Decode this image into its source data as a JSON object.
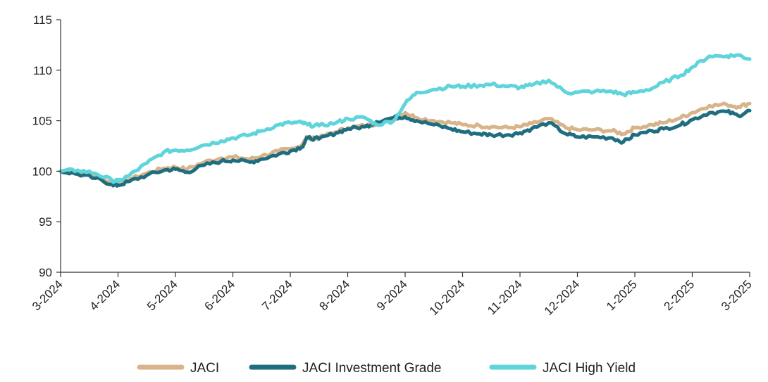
{
  "chart_data": {
    "type": "line",
    "title": "",
    "xlabel": "",
    "ylabel": "",
    "ylim": [
      90,
      115
    ],
    "yticks": [
      90,
      95,
      100,
      105,
      110,
      115
    ],
    "categories": [
      "3-2024",
      "4-2024",
      "5-2024",
      "6-2024",
      "7-2024",
      "8-2024",
      "9-2024",
      "10-2024",
      "11-2024",
      "12-2024",
      "1-2025",
      "2-2025",
      "3-2025"
    ],
    "grid": false,
    "legend_position": "bottom",
    "series": [
      {
        "name": "JACI",
        "color": "#D8B48A",
        "points": [
          [
            0,
            100.0
          ],
          [
            0.3,
            99.9
          ],
          [
            0.6,
            99.5
          ],
          [
            0.9,
            98.9
          ],
          [
            1.0,
            98.8
          ],
          [
            1.2,
            99.2
          ],
          [
            1.5,
            99.8
          ],
          [
            1.8,
            100.3
          ],
          [
            2.0,
            100.4
          ],
          [
            2.2,
            100.2
          ],
          [
            2.5,
            100.9
          ],
          [
            2.8,
            101.3
          ],
          [
            3.0,
            101.4
          ],
          [
            3.3,
            101.2
          ],
          [
            3.5,
            101.5
          ],
          [
            3.8,
            102.0
          ],
          [
            4.0,
            102.2
          ],
          [
            4.2,
            102.6
          ],
          [
            4.3,
            103.4
          ],
          [
            4.5,
            103.3
          ],
          [
            4.8,
            103.9
          ],
          [
            5.0,
            104.3
          ],
          [
            5.3,
            104.5
          ],
          [
            5.5,
            104.7
          ],
          [
            5.8,
            105.1
          ],
          [
            6.0,
            105.8
          ],
          [
            6.2,
            105.3
          ],
          [
            6.5,
            105.0
          ],
          [
            6.8,
            104.8
          ],
          [
            7.0,
            104.6
          ],
          [
            7.3,
            104.5
          ],
          [
            7.5,
            104.4
          ],
          [
            7.8,
            104.3
          ],
          [
            8.0,
            104.4
          ],
          [
            8.2,
            104.7
          ],
          [
            8.5,
            105.2
          ],
          [
            8.8,
            104.3
          ],
          [
            9.0,
            104.1
          ],
          [
            9.3,
            104.1
          ],
          [
            9.6,
            104.0
          ],
          [
            9.8,
            103.7
          ],
          [
            10.0,
            104.3
          ],
          [
            10.3,
            104.6
          ],
          [
            10.5,
            104.8
          ],
          [
            10.8,
            105.3
          ],
          [
            11.0,
            105.8
          ],
          [
            11.3,
            106.5
          ],
          [
            11.6,
            106.6
          ],
          [
            11.8,
            106.4
          ],
          [
            12.0,
            106.7
          ]
        ]
      },
      {
        "name": "JACI Investment Grade",
        "color": "#1F6E80",
        "points": [
          [
            0,
            100.0
          ],
          [
            0.3,
            99.7
          ],
          [
            0.6,
            99.3
          ],
          [
            0.9,
            98.7
          ],
          [
            1.0,
            98.6
          ],
          [
            1.2,
            99.0
          ],
          [
            1.5,
            99.6
          ],
          [
            1.8,
            100.1
          ],
          [
            2.0,
            100.2
          ],
          [
            2.2,
            99.9
          ],
          [
            2.5,
            100.6
          ],
          [
            2.8,
            101.0
          ],
          [
            3.0,
            101.1
          ],
          [
            3.3,
            100.9
          ],
          [
            3.5,
            101.2
          ],
          [
            3.8,
            101.7
          ],
          [
            4.0,
            102.0
          ],
          [
            4.2,
            102.4
          ],
          [
            4.3,
            103.3
          ],
          [
            4.5,
            103.2
          ],
          [
            4.8,
            103.8
          ],
          [
            5.0,
            104.2
          ],
          [
            5.3,
            104.4
          ],
          [
            5.5,
            104.9
          ],
          [
            5.8,
            105.3
          ],
          [
            6.0,
            105.4
          ],
          [
            6.2,
            105.0
          ],
          [
            6.5,
            104.6
          ],
          [
            6.8,
            104.2
          ],
          [
            7.0,
            103.9
          ],
          [
            7.3,
            103.7
          ],
          [
            7.5,
            103.6
          ],
          [
            7.8,
            103.6
          ],
          [
            8.0,
            103.8
          ],
          [
            8.2,
            104.2
          ],
          [
            8.5,
            104.8
          ],
          [
            8.8,
            103.7
          ],
          [
            9.0,
            103.4
          ],
          [
            9.3,
            103.4
          ],
          [
            9.6,
            103.3
          ],
          [
            9.8,
            102.9
          ],
          [
            10.0,
            103.6
          ],
          [
            10.3,
            104.0
          ],
          [
            10.5,
            104.2
          ],
          [
            10.8,
            104.6
          ],
          [
            11.0,
            105.1
          ],
          [
            11.3,
            105.8
          ],
          [
            11.6,
            105.9
          ],
          [
            11.8,
            105.5
          ],
          [
            12.0,
            106.0
          ]
        ]
      },
      {
        "name": "JACI High Yield",
        "color": "#5FD4DA",
        "points": [
          [
            0,
            100.0
          ],
          [
            0.3,
            100.1
          ],
          [
            0.6,
            99.8
          ],
          [
            0.9,
            99.1
          ],
          [
            1.0,
            99.0
          ],
          [
            1.2,
            99.6
          ],
          [
            1.5,
            100.8
          ],
          [
            1.8,
            101.9
          ],
          [
            2.0,
            102.1
          ],
          [
            2.2,
            102.1
          ],
          [
            2.5,
            102.6
          ],
          [
            2.8,
            103.0
          ],
          [
            3.0,
            103.3
          ],
          [
            3.3,
            103.6
          ],
          [
            3.5,
            104.0
          ],
          [
            3.8,
            104.6
          ],
          [
            4.0,
            104.8
          ],
          [
            4.2,
            104.8
          ],
          [
            4.3,
            104.6
          ],
          [
            4.5,
            104.5
          ],
          [
            4.8,
            104.8
          ],
          [
            5.0,
            105.2
          ],
          [
            5.3,
            105.3
          ],
          [
            5.5,
            104.6
          ],
          [
            5.8,
            105.0
          ],
          [
            6.0,
            106.7
          ],
          [
            6.2,
            107.8
          ],
          [
            6.5,
            108.1
          ],
          [
            6.8,
            108.4
          ],
          [
            7.0,
            108.4
          ],
          [
            7.3,
            108.5
          ],
          [
            7.5,
            108.6
          ],
          [
            7.8,
            108.4
          ],
          [
            8.0,
            108.3
          ],
          [
            8.2,
            108.5
          ],
          [
            8.5,
            109.0
          ],
          [
            8.8,
            107.8
          ],
          [
            9.0,
            107.8
          ],
          [
            9.3,
            107.9
          ],
          [
            9.6,
            107.9
          ],
          [
            9.8,
            107.6
          ],
          [
            10.0,
            107.8
          ],
          [
            10.3,
            108.2
          ],
          [
            10.5,
            108.8
          ],
          [
            10.8,
            109.5
          ],
          [
            11.0,
            110.3
          ],
          [
            11.3,
            111.4
          ],
          [
            11.6,
            111.4
          ],
          [
            11.8,
            111.5
          ],
          [
            12.0,
            111.1
          ]
        ]
      }
    ]
  }
}
